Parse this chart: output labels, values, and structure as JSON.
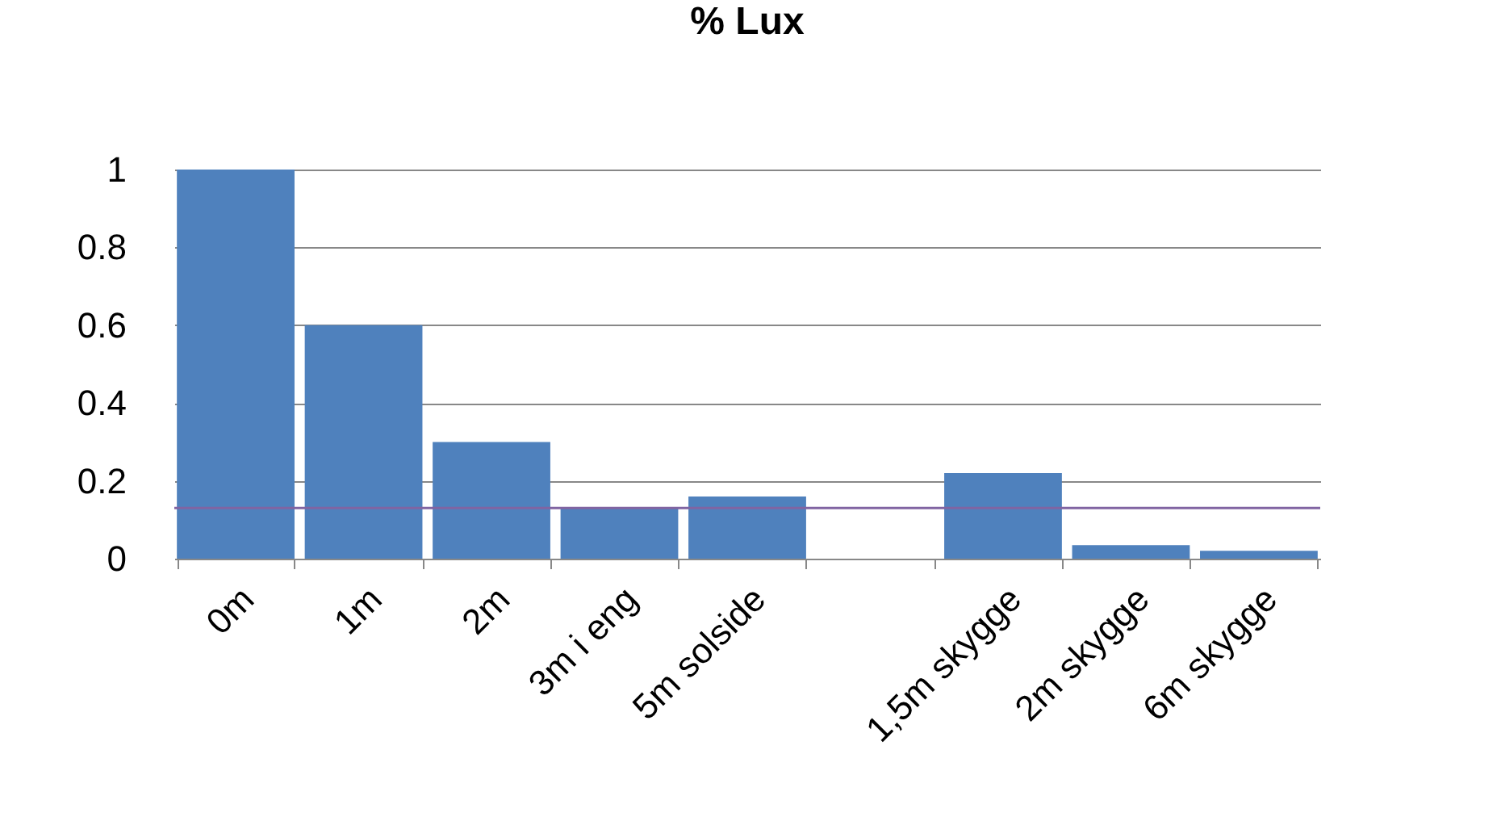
{
  "chart_data": {
    "type": "bar",
    "title": "% Lux",
    "categories": [
      "0m",
      "1m",
      "2m",
      "3m i eng",
      "5m solside",
      null,
      "1,5m skygge",
      "2m skygge",
      "6m skygge"
    ],
    "values": [
      1.0,
      0.6,
      0.3,
      0.13,
      0.16,
      null,
      0.22,
      0.035,
      0.02
    ],
    "color": "#4f81bd",
    "ylim": [
      0,
      1
    ],
    "yticks": [
      0,
      0.2,
      0.4,
      0.6,
      0.8,
      1
    ],
    "grid": "y",
    "ref_lines": [
      {
        "axis": "y",
        "value": 0.13,
        "color": "#8064a2"
      }
    ]
  }
}
